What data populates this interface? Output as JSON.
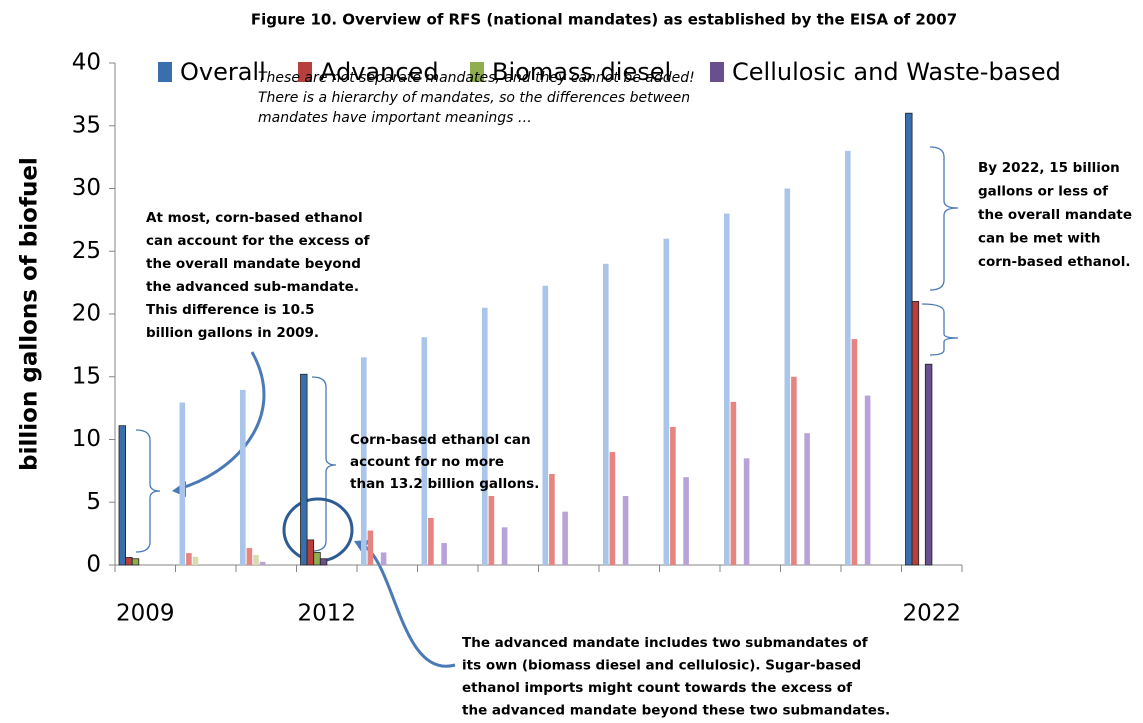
{
  "chart_data": {
    "type": "bar",
    "title": "Figure 10. Overview of RFS (national mandates) as established by the EISA of 2007",
    "y_label": "billion gallons of biofuel",
    "categories": [
      "2009",
      null,
      null,
      "2012",
      null,
      null,
      null,
      null,
      null,
      null,
      null,
      null,
      null,
      "2022"
    ],
    "series": [
      {
        "name": "Overall",
        "color": "#3a6fae",
        "light_color": "#a9c5ea",
        "values": [
          11.1,
          12.95,
          13.95,
          15.2,
          16.55,
          18.15,
          20.5,
          22.25,
          24.0,
          26.0,
          28.0,
          30.0,
          33.0,
          36.0
        ]
      },
      {
        "name": "Advanced",
        "color": "#b8403c",
        "light_color": "#e88480",
        "values": [
          0.6,
          0.95,
          1.35,
          2.0,
          2.75,
          3.75,
          5.5,
          7.25,
          9.0,
          11.0,
          13.0,
          15.0,
          18.0,
          21.0
        ]
      },
      {
        "name": "Biomass diesel",
        "color": "#8fae4e",
        "light_color": "#d9dcae",
        "values": [
          0.5,
          0.65,
          0.8,
          1.0,
          null,
          null,
          null,
          null,
          null,
          null,
          null,
          null,
          null,
          null
        ]
      },
      {
        "name": "Cellulosic and Waste-based",
        "color": "#6a4f8e",
        "light_color": "#b9a2d8",
        "values": [
          null,
          null,
          0.25,
          0.5,
          1.0,
          1.75,
          3.0,
          4.25,
          5.5,
          7.0,
          8.5,
          10.5,
          13.5,
          16.0
        ]
      }
    ],
    "ylim": [
      0,
      40
    ],
    "yticks": [
      0,
      5,
      10,
      15,
      20,
      25,
      30,
      35,
      40
    ],
    "grid": false,
    "legend": "top",
    "annotations": [
      [
        "These are not separate mandates, and they cannot be added!",
        "There is a hierarchy of  mandates, so the differences between",
        "mandates have important meanings …"
      ],
      [
        "At most, corn-based  ethanol",
        "can account for the excess of",
        "the overall mandate beyond",
        "the advanced sub-mandate.",
        "This difference is 10.5",
        "billion gallons in 2009."
      ],
      [
        "Corn-based ethanol can",
        "account for no more",
        "than 13.2 billion gallons."
      ],
      [
        "By 2022,  15 billion",
        "gallons or less of",
        "the overall mandate",
        "can be met with",
        "corn-based ethanol."
      ],
      [
        "The advanced mandate includes two submandates of",
        "its own (biomass diesel and cellulosic). Sugar-based",
        "ethanol imports might count towards the excess of",
        "the advanced mandate beyond these two submandates."
      ]
    ]
  }
}
